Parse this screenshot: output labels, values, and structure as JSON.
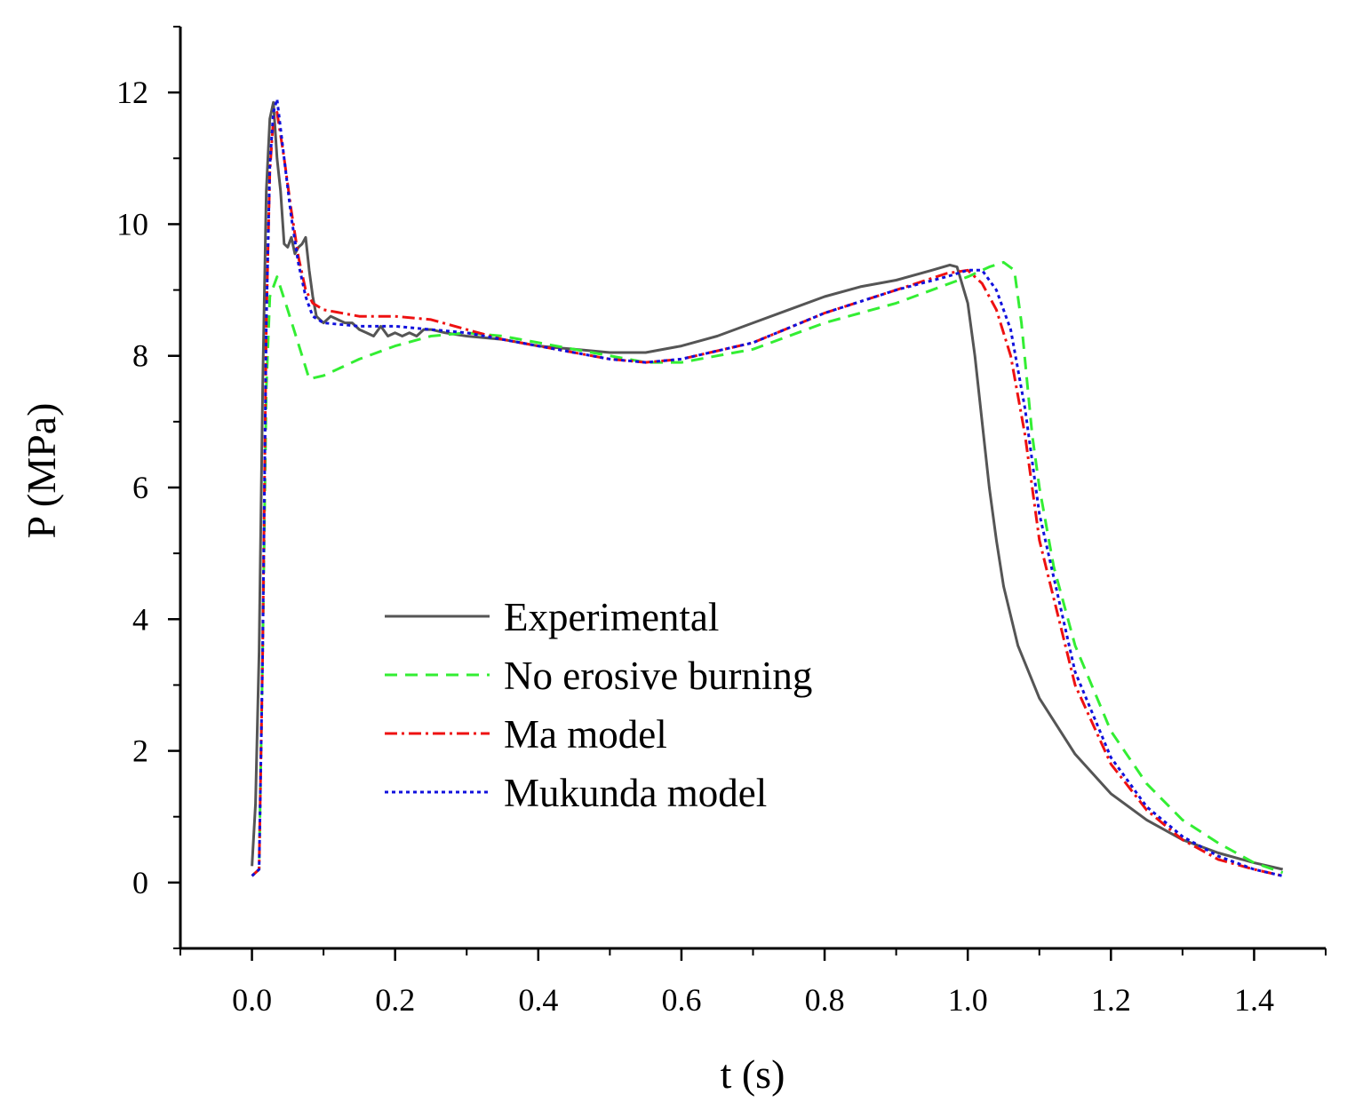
{
  "chart_data": {
    "type": "line",
    "title": "",
    "xlabel": "t (s)",
    "ylabel": "P (MPa)",
    "xlim": [
      -0.1,
      1.5
    ],
    "ylim": [
      -1,
      13
    ],
    "x_ticks": [
      0.0,
      0.2,
      0.4,
      0.6,
      0.8,
      1.0,
      1.2,
      1.4
    ],
    "x_tick_labels": [
      "0.0",
      "0.2",
      "0.4",
      "0.6",
      "0.8",
      "1.0",
      "1.2",
      "1.4"
    ],
    "y_ticks": [
      0,
      2,
      4,
      6,
      8,
      10,
      12
    ],
    "y_tick_labels": [
      "0",
      "2",
      "4",
      "6",
      "8",
      "10",
      "12"
    ],
    "grid": false,
    "legend_position": "center-left",
    "series": [
      {
        "name": "Experimental",
        "color": "#555555",
        "style": "solid",
        "x": [
          0.0,
          0.005,
          0.01,
          0.015,
          0.02,
          0.025,
          0.03,
          0.035,
          0.04,
          0.045,
          0.05,
          0.055,
          0.06,
          0.065,
          0.07,
          0.075,
          0.08,
          0.085,
          0.09,
          0.1,
          0.11,
          0.12,
          0.13,
          0.14,
          0.15,
          0.16,
          0.17,
          0.18,
          0.19,
          0.2,
          0.21,
          0.22,
          0.23,
          0.24,
          0.25,
          0.27,
          0.3,
          0.35,
          0.4,
          0.45,
          0.5,
          0.55,
          0.6,
          0.65,
          0.7,
          0.75,
          0.8,
          0.85,
          0.9,
          0.95,
          0.975,
          0.985,
          1.0,
          1.01,
          1.02,
          1.03,
          1.04,
          1.05,
          1.07,
          1.1,
          1.15,
          1.2,
          1.25,
          1.3,
          1.35,
          1.4,
          1.44
        ],
        "y": [
          0.25,
          1.2,
          3.5,
          7.5,
          10.5,
          11.6,
          11.85,
          11.0,
          10.5,
          9.7,
          9.65,
          9.8,
          9.55,
          9.65,
          9.7,
          9.8,
          9.3,
          8.9,
          8.6,
          8.5,
          8.6,
          8.55,
          8.5,
          8.5,
          8.4,
          8.35,
          8.3,
          8.45,
          8.3,
          8.35,
          8.3,
          8.35,
          8.3,
          8.4,
          8.4,
          8.35,
          8.3,
          8.25,
          8.15,
          8.1,
          8.05,
          8.05,
          8.15,
          8.3,
          8.5,
          8.7,
          8.9,
          9.05,
          9.15,
          9.3,
          9.38,
          9.35,
          8.8,
          8.0,
          7.0,
          6.0,
          5.2,
          4.5,
          3.6,
          2.8,
          1.95,
          1.35,
          0.95,
          0.65,
          0.45,
          0.3,
          0.2
        ]
      },
      {
        "name": "No erosive burning",
        "color": "#33ee33",
        "style": "dashed",
        "x": [
          0.0,
          0.01,
          0.015,
          0.02,
          0.025,
          0.035,
          0.05,
          0.07,
          0.08,
          0.1,
          0.15,
          0.2,
          0.25,
          0.3,
          0.35,
          0.4,
          0.5,
          0.55,
          0.6,
          0.7,
          0.8,
          0.9,
          1.0,
          1.03,
          1.05,
          1.065,
          1.075,
          1.09,
          1.1,
          1.12,
          1.15,
          1.2,
          1.25,
          1.3,
          1.35,
          1.4,
          1.44
        ],
        "y": [
          0.1,
          0.2,
          3.5,
          7.5,
          8.9,
          9.2,
          8.7,
          8.0,
          7.65,
          7.7,
          7.95,
          8.15,
          8.3,
          8.35,
          8.3,
          8.2,
          8.0,
          7.9,
          7.9,
          8.1,
          8.5,
          8.8,
          9.2,
          9.35,
          9.42,
          9.3,
          8.5,
          6.8,
          6.0,
          4.8,
          3.6,
          2.3,
          1.5,
          0.95,
          0.6,
          0.3,
          0.15
        ]
      },
      {
        "name": "Ma model",
        "color": "#ee1111",
        "style": "dashdot",
        "x": [
          0.0,
          0.01,
          0.015,
          0.02,
          0.025,
          0.03,
          0.035,
          0.045,
          0.055,
          0.065,
          0.075,
          0.085,
          0.1,
          0.15,
          0.2,
          0.25,
          0.3,
          0.35,
          0.4,
          0.5,
          0.55,
          0.6,
          0.7,
          0.8,
          0.9,
          0.97,
          1.0,
          1.02,
          1.04,
          1.06,
          1.08,
          1.1,
          1.15,
          1.2,
          1.25,
          1.3,
          1.35,
          1.4,
          1.44
        ],
        "y": [
          0.1,
          0.2,
          3.5,
          8.5,
          10.8,
          11.6,
          11.7,
          11.0,
          10.2,
          9.5,
          9.0,
          8.8,
          8.7,
          8.6,
          8.6,
          8.55,
          8.4,
          8.25,
          8.15,
          7.95,
          7.9,
          7.95,
          8.2,
          8.65,
          9.0,
          9.25,
          9.3,
          9.1,
          8.7,
          8.0,
          6.8,
          5.2,
          3.0,
          1.8,
          1.1,
          0.65,
          0.35,
          0.2,
          0.1
        ]
      },
      {
        "name": "Mukunda model",
        "color": "#1111dd",
        "style": "dotted",
        "x": [
          0.0,
          0.01,
          0.015,
          0.02,
          0.025,
          0.03,
          0.035,
          0.045,
          0.055,
          0.065,
          0.075,
          0.085,
          0.1,
          0.15,
          0.2,
          0.25,
          0.3,
          0.35,
          0.4,
          0.5,
          0.55,
          0.6,
          0.7,
          0.8,
          0.9,
          0.97,
          1.0,
          1.02,
          1.04,
          1.06,
          1.08,
          1.1,
          1.15,
          1.2,
          1.25,
          1.3,
          1.35,
          1.4,
          1.44
        ],
        "y": [
          0.1,
          0.2,
          3.5,
          8.5,
          10.9,
          11.7,
          11.9,
          11.0,
          10.1,
          9.4,
          8.9,
          8.6,
          8.5,
          8.45,
          8.45,
          8.4,
          8.35,
          8.25,
          8.15,
          7.95,
          7.9,
          7.95,
          8.2,
          8.65,
          9.0,
          9.2,
          9.3,
          9.3,
          9.0,
          8.4,
          7.2,
          5.6,
          3.2,
          1.9,
          1.15,
          0.7,
          0.4,
          0.2,
          0.1
        ]
      }
    ]
  }
}
